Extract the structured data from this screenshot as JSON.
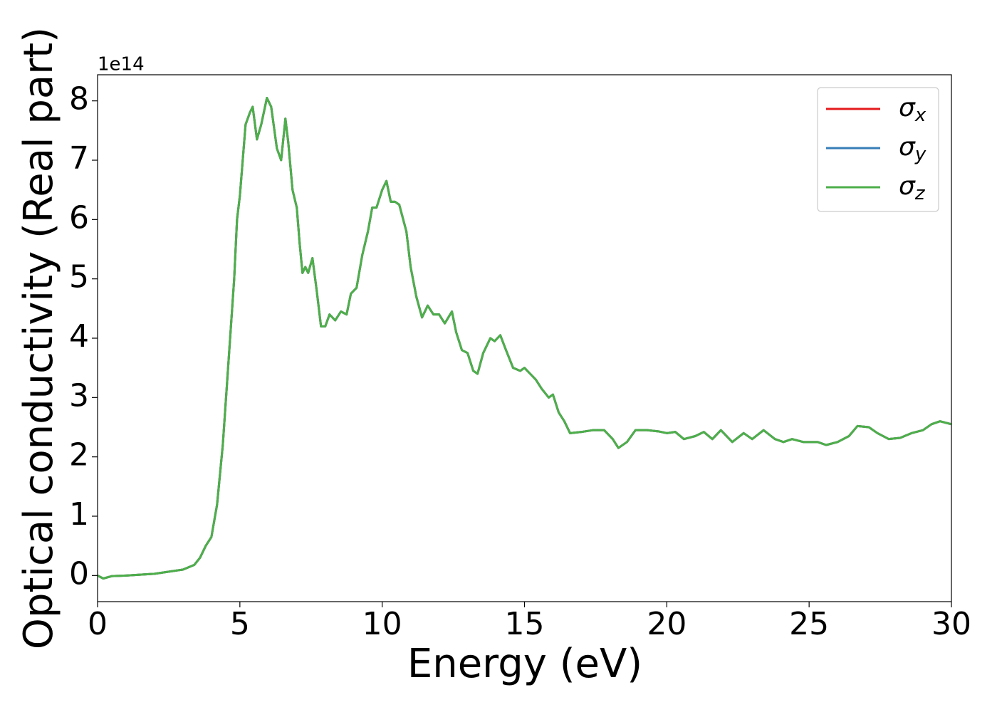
{
  "chart_data": {
    "type": "line",
    "xlabel": "Energy (eV)",
    "ylabel": "Optical conductivity (Real part)",
    "offset_label": "1e14",
    "x": [
      0,
      0.2,
      0.5,
      1,
      2,
      3,
      3.4,
      3.6,
      3.8,
      4.0,
      4.2,
      4.4,
      4.6,
      4.8,
      4.9,
      5.0,
      5.1,
      5.2,
      5.35,
      5.45,
      5.6,
      5.75,
      5.95,
      6.1,
      6.3,
      6.45,
      6.6,
      6.7,
      6.85,
      7.0,
      7.1,
      7.2,
      7.3,
      7.4,
      7.55,
      7.7,
      7.85,
      8.0,
      8.15,
      8.35,
      8.55,
      8.75,
      8.9,
      9.1,
      9.3,
      9.5,
      9.65,
      9.8,
      10.0,
      10.15,
      10.3,
      10.45,
      10.6,
      10.85,
      11.0,
      11.2,
      11.4,
      11.6,
      11.8,
      12.0,
      12.2,
      12.45,
      12.6,
      12.8,
      13.0,
      13.2,
      13.35,
      13.55,
      13.8,
      13.95,
      14.15,
      14.35,
      14.6,
      14.85,
      15.0,
      15.2,
      15.4,
      15.6,
      15.85,
      16.0,
      16.2,
      16.4,
      16.6,
      17.0,
      17.4,
      17.8,
      18.1,
      18.3,
      18.6,
      18.9,
      19.3,
      19.7,
      20.0,
      20.3,
      20.6,
      21.0,
      21.3,
      21.6,
      21.9,
      22.3,
      22.7,
      23.0,
      23.4,
      23.8,
      24.1,
      24.4,
      24.8,
      25.3,
      25.6,
      26.0,
      26.4,
      26.7,
      27.1,
      27.4,
      27.8,
      28.2,
      28.6,
      29.0,
      29.3,
      29.6,
      30.0
    ],
    "series": [
      {
        "name": "σx",
        "color": "#e41a1c",
        "values": [
          0,
          -0.05,
          -0.01,
          0,
          0.03,
          0.1,
          0.18,
          0.3,
          0.5,
          0.65,
          1.2,
          2.2,
          3.6,
          5.0,
          6.0,
          6.4,
          7.0,
          7.6,
          7.8,
          7.9,
          7.35,
          7.6,
          8.05,
          7.9,
          7.2,
          7.0,
          7.7,
          7.3,
          6.5,
          6.2,
          5.6,
          5.1,
          5.2,
          5.1,
          5.35,
          4.8,
          4.2,
          4.2,
          4.4,
          4.3,
          4.45,
          4.4,
          4.75,
          4.85,
          5.4,
          5.8,
          6.2,
          6.2,
          6.5,
          6.65,
          6.3,
          6.3,
          6.25,
          5.8,
          5.2,
          4.7,
          4.35,
          4.55,
          4.4,
          4.4,
          4.25,
          4.45,
          4.1,
          3.8,
          3.75,
          3.45,
          3.4,
          3.75,
          4.0,
          3.95,
          4.05,
          3.8,
          3.5,
          3.45,
          3.5,
          3.4,
          3.3,
          3.15,
          3.0,
          3.05,
          2.75,
          2.6,
          2.4,
          2.42,
          2.45,
          2.45,
          2.3,
          2.15,
          2.25,
          2.45,
          2.45,
          2.43,
          2.4,
          2.42,
          2.3,
          2.35,
          2.42,
          2.3,
          2.45,
          2.25,
          2.4,
          2.3,
          2.45,
          2.3,
          2.25,
          2.3,
          2.25,
          2.25,
          2.2,
          2.25,
          2.35,
          2.52,
          2.5,
          2.4,
          2.3,
          2.32,
          2.4,
          2.45,
          2.55,
          2.6,
          2.55
        ]
      },
      {
        "name": "σy",
        "color": "#377eb8",
        "values": [
          0,
          -0.05,
          -0.01,
          0,
          0.03,
          0.1,
          0.18,
          0.3,
          0.5,
          0.65,
          1.2,
          2.2,
          3.6,
          5.0,
          6.0,
          6.4,
          7.0,
          7.6,
          7.8,
          7.9,
          7.35,
          7.6,
          8.05,
          7.9,
          7.2,
          7.0,
          7.7,
          7.3,
          6.5,
          6.2,
          5.6,
          5.1,
          5.2,
          5.1,
          5.35,
          4.8,
          4.2,
          4.2,
          4.4,
          4.3,
          4.45,
          4.4,
          4.75,
          4.85,
          5.4,
          5.8,
          6.2,
          6.2,
          6.5,
          6.65,
          6.3,
          6.3,
          6.25,
          5.8,
          5.2,
          4.7,
          4.35,
          4.55,
          4.4,
          4.4,
          4.25,
          4.45,
          4.1,
          3.8,
          3.75,
          3.45,
          3.4,
          3.75,
          4.0,
          3.95,
          4.05,
          3.8,
          3.5,
          3.45,
          3.5,
          3.4,
          3.3,
          3.15,
          3.0,
          3.05,
          2.75,
          2.6,
          2.4,
          2.42,
          2.45,
          2.45,
          2.3,
          2.15,
          2.25,
          2.45,
          2.45,
          2.43,
          2.4,
          2.42,
          2.3,
          2.35,
          2.42,
          2.3,
          2.45,
          2.25,
          2.4,
          2.3,
          2.45,
          2.3,
          2.25,
          2.3,
          2.25,
          2.25,
          2.2,
          2.25,
          2.35,
          2.52,
          2.5,
          2.4,
          2.3,
          2.32,
          2.4,
          2.45,
          2.55,
          2.6,
          2.55
        ]
      },
      {
        "name": "σz",
        "color": "#4daf4a",
        "values": [
          0,
          -0.05,
          -0.01,
          0,
          0.03,
          0.1,
          0.18,
          0.3,
          0.5,
          0.65,
          1.2,
          2.2,
          3.6,
          5.0,
          6.0,
          6.4,
          7.0,
          7.6,
          7.8,
          7.9,
          7.35,
          7.6,
          8.05,
          7.9,
          7.2,
          7.0,
          7.7,
          7.3,
          6.5,
          6.2,
          5.6,
          5.1,
          5.2,
          5.1,
          5.35,
          4.8,
          4.2,
          4.2,
          4.4,
          4.3,
          4.45,
          4.4,
          4.75,
          4.85,
          5.4,
          5.8,
          6.2,
          6.2,
          6.5,
          6.65,
          6.3,
          6.3,
          6.25,
          5.8,
          5.2,
          4.7,
          4.35,
          4.55,
          4.4,
          4.4,
          4.25,
          4.45,
          4.1,
          3.8,
          3.75,
          3.45,
          3.4,
          3.75,
          4.0,
          3.95,
          4.05,
          3.8,
          3.5,
          3.45,
          3.5,
          3.4,
          3.3,
          3.15,
          3.0,
          3.05,
          2.75,
          2.6,
          2.4,
          2.42,
          2.45,
          2.45,
          2.3,
          2.15,
          2.25,
          2.45,
          2.45,
          2.43,
          2.4,
          2.42,
          2.3,
          2.35,
          2.42,
          2.3,
          2.45,
          2.25,
          2.4,
          2.3,
          2.45,
          2.3,
          2.25,
          2.3,
          2.25,
          2.25,
          2.2,
          2.25,
          2.35,
          2.52,
          2.5,
          2.4,
          2.3,
          2.32,
          2.4,
          2.45,
          2.55,
          2.6,
          2.55
        ]
      }
    ],
    "xlim": [
      0,
      30
    ],
    "xticks": [
      0,
      5,
      10,
      15,
      20,
      25,
      30
    ],
    "ylim": [
      -0.44,
      8.44
    ],
    "yticks": [
      0,
      1,
      2,
      3,
      4,
      5,
      6,
      7,
      8
    ],
    "legend": "upper right",
    "grid": false
  }
}
